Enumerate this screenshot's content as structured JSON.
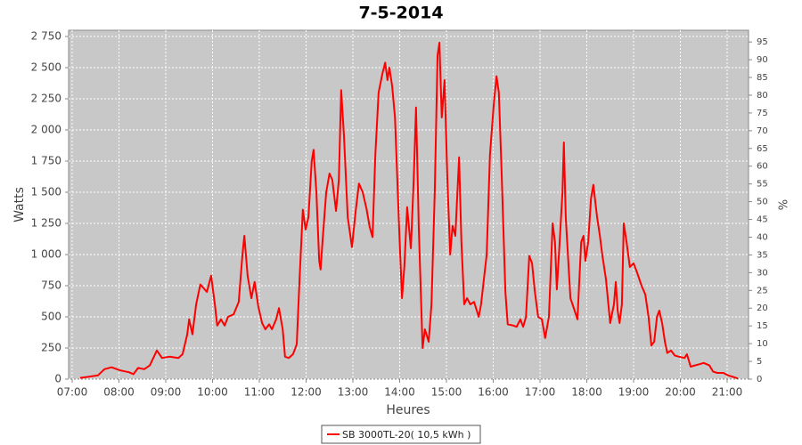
{
  "chart_data": {
    "type": "line",
    "title": "7-5-2014",
    "x_label": "Heures",
    "y_label": "Watts",
    "y2_label": "%",
    "x": [
      7.17,
      7.36,
      7.55,
      7.69,
      7.84,
      8.03,
      8.22,
      8.31,
      8.41,
      8.54,
      8.66,
      8.81,
      8.92,
      9.08,
      9.27,
      9.36,
      9.46,
      9.5,
      9.57,
      9.65,
      9.74,
      9.88,
      9.97,
      10.05,
      10.1,
      10.18,
      10.26,
      10.33,
      10.45,
      10.56,
      10.64,
      10.68,
      10.75,
      10.83,
      10.9,
      10.98,
      11.06,
      11.13,
      11.21,
      11.27,
      11.36,
      11.42,
      11.5,
      11.55,
      11.63,
      11.72,
      11.8,
      11.86,
      11.93,
      11.99,
      12.05,
      12.12,
      12.16,
      12.22,
      12.28,
      12.31,
      12.35,
      12.43,
      12.5,
      12.56,
      12.64,
      12.7,
      12.75,
      12.81,
      12.89,
      12.98,
      13.06,
      13.13,
      13.21,
      13.29,
      13.36,
      13.42,
      13.48,
      13.55,
      13.63,
      13.69,
      13.74,
      13.78,
      13.84,
      13.9,
      13.99,
      14.05,
      14.1,
      14.16,
      14.24,
      14.3,
      14.35,
      14.41,
      14.49,
      14.54,
      14.62,
      14.68,
      14.75,
      14.81,
      14.85,
      14.9,
      14.96,
      15.02,
      15.08,
      15.13,
      15.19,
      15.27,
      15.32,
      15.38,
      15.44,
      15.51,
      15.59,
      15.69,
      15.74,
      15.86,
      15.93,
      16.01,
      16.07,
      16.12,
      16.18,
      16.26,
      16.31,
      16.43,
      16.5,
      16.58,
      16.64,
      16.7,
      16.77,
      16.83,
      16.89,
      16.96,
      17.04,
      17.11,
      17.19,
      17.27,
      17.32,
      17.36,
      17.42,
      17.48,
      17.51,
      17.55,
      17.65,
      17.74,
      17.8,
      17.88,
      17.93,
      17.97,
      18.03,
      18.09,
      18.14,
      18.22,
      18.28,
      18.33,
      18.41,
      18.5,
      18.58,
      18.62,
      18.66,
      18.7,
      18.75,
      18.79,
      18.85,
      18.92,
      19.0,
      19.08,
      19.17,
      19.25,
      19.32,
      19.38,
      19.44,
      19.5,
      19.55,
      19.61,
      19.67,
      19.72,
      19.8,
      19.88,
      19.97,
      20.09,
      20.14,
      20.22,
      20.31,
      20.41,
      20.5,
      20.62,
      20.7,
      20.79,
      20.92,
      21.02,
      21.11,
      21.23
    ],
    "series": [
      {
        "name": "SB 3000TL-20( 10,5 kWh )",
        "color": "#ff0000",
        "values": [
          10,
          20,
          30,
          80,
          95,
          70,
          55,
          40,
          90,
          80,
          110,
          230,
          170,
          180,
          170,
          200,
          360,
          480,
          360,
          600,
          760,
          700,
          830,
          600,
          430,
          480,
          430,
          500,
          520,
          620,
          1000,
          1150,
          830,
          650,
          780,
          580,
          450,
          400,
          440,
          400,
          480,
          570,
          400,
          180,
          170,
          200,
          280,
          800,
          1360,
          1200,
          1300,
          1750,
          1840,
          1500,
          950,
          880,
          1100,
          1500,
          1650,
          1600,
          1350,
          1600,
          2320,
          1950,
          1300,
          1060,
          1350,
          1570,
          1500,
          1370,
          1220,
          1140,
          1800,
          2300,
          2450,
          2540,
          2400,
          2500,
          2350,
          2100,
          1200,
          650,
          900,
          1380,
          1050,
          1600,
          2180,
          1200,
          250,
          400,
          300,
          600,
          1500,
          2600,
          2700,
          2100,
          2400,
          1600,
          1000,
          1230,
          1150,
          1780,
          1100,
          600,
          650,
          600,
          620,
          500,
          600,
          1000,
          1800,
          2200,
          2430,
          2300,
          1650,
          700,
          440,
          430,
          420,
          480,
          420,
          500,
          990,
          930,
          700,
          500,
          480,
          330,
          500,
          1250,
          1100,
          720,
          1100,
          1500,
          1900,
          1300,
          650,
          550,
          480,
          1100,
          1150,
          950,
          1100,
          1450,
          1560,
          1300,
          1150,
          1000,
          800,
          450,
          600,
          780,
          550,
          450,
          600,
          1250,
          1100,
          900,
          930,
          850,
          750,
          680,
          500,
          270,
          300,
          500,
          550,
          450,
          300,
          210,
          230,
          190,
          180,
          170,
          200,
          100,
          110,
          120,
          130,
          110,
          60,
          50,
          50,
          30,
          20,
          5
        ]
      }
    ],
    "xlim": [
      6.924,
      21.457
    ],
    "xticks": [
      {
        "value": 7,
        "label": "07:00"
      },
      {
        "value": 8,
        "label": "08:00"
      },
      {
        "value": 9,
        "label": "09:00"
      },
      {
        "value": 10,
        "label": "10:00"
      },
      {
        "value": 11,
        "label": "11:00"
      },
      {
        "value": 12,
        "label": "12:00"
      },
      {
        "value": 13,
        "label": "13:00"
      },
      {
        "value": 14,
        "label": "14:00"
      },
      {
        "value": 15,
        "label": "15:00"
      },
      {
        "value": 16,
        "label": "16:00"
      },
      {
        "value": 17,
        "label": "17:00"
      },
      {
        "value": 18,
        "label": "18:00"
      },
      {
        "value": 19,
        "label": "19:00"
      },
      {
        "value": 20,
        "label": "20:00"
      },
      {
        "value": 21,
        "label": "21:00"
      }
    ],
    "ylim": [
      0,
      2800
    ],
    "yticks": [
      0,
      250,
      500,
      750,
      {
        "value": 1000,
        "label": "1 000"
      },
      {
        "value": 1250,
        "label": "1 250"
      },
      {
        "value": 1500,
        "label": "1 500"
      },
      {
        "value": 1750,
        "label": "1 750"
      },
      {
        "value": 2000,
        "label": "2 000"
      },
      {
        "value": 2250,
        "label": "2 250"
      },
      {
        "value": 2500,
        "label": "2 500"
      },
      {
        "value": 2750,
        "label": "2 750"
      }
    ],
    "y2lim": [
      0,
      98.3
    ],
    "y2ticks": [
      0,
      5,
      10,
      15,
      20,
      25,
      30,
      35,
      40,
      45,
      50,
      55,
      60,
      65,
      70,
      75,
      80,
      85,
      90,
      95
    ],
    "grid": true
  }
}
